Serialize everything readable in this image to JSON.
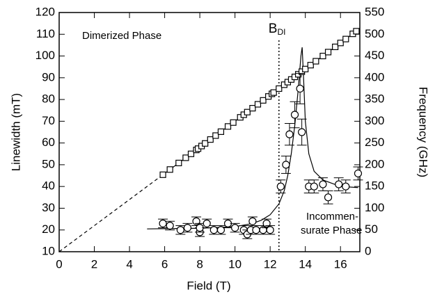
{
  "chart_data": {
    "type": "scatter",
    "x_label": "Field (T)",
    "y_label": "Linewidth (mT)",
    "y2_label": "Frequency (GHz)",
    "xlim": [
      0,
      17.1
    ],
    "ylim": [
      10,
      120
    ],
    "y2lim": [
      0,
      550
    ],
    "xticks": [
      0,
      2,
      4,
      6,
      8,
      10,
      12,
      14,
      16
    ],
    "yticks": [
      10,
      20,
      30,
      40,
      50,
      60,
      70,
      80,
      90,
      100,
      110,
      120
    ],
    "y2ticks": [
      0,
      50,
      100,
      150,
      200,
      250,
      300,
      350,
      400,
      450,
      500,
      550
    ],
    "color": "#000000",
    "frequency": {
      "axis": "y2",
      "marker": "square",
      "x": [
        5.9,
        6.3,
        6.8,
        7.2,
        7.5,
        7.8,
        7.9,
        8.1,
        8.3,
        8.6,
        8.9,
        9.2,
        9.6,
        9.9,
        10.3,
        10.5,
        10.7,
        11.0,
        11.3,
        11.6,
        11.9,
        12.1,
        12.2,
        12.5,
        12.8,
        13.0,
        13.2,
        13.4,
        13.6,
        13.8,
        14.0,
        14.3,
        14.6,
        15.0,
        15.3,
        15.7,
        16.0,
        16.3,
        16.7,
        16.9
      ],
      "values": [
        177,
        189,
        204,
        216,
        225,
        234,
        237,
        243,
        249,
        258,
        267,
        276,
        288,
        297,
        309,
        315,
        321,
        330,
        339,
        348,
        357,
        363,
        366,
        375,
        384,
        390,
        396,
        402,
        408,
        414,
        420,
        429,
        438,
        450,
        459,
        471,
        480,
        489,
        501,
        507
      ]
    },
    "frequency_fit_extrapolated": {
      "axis": "y2",
      "style": "dashed",
      "x": [
        0,
        5.9
      ],
      "values": [
        0,
        177
      ]
    },
    "frequency_fit": {
      "axis": "y2",
      "style": "solid",
      "x": [
        5.9,
        17.1
      ],
      "values": [
        177,
        513
      ]
    },
    "linewidth": {
      "axis": "y",
      "marker": "circle",
      "x": [
        5.9,
        6.3,
        6.9,
        7.3,
        7.8,
        8.0,
        8.0,
        8.4,
        8.8,
        9.2,
        9.6,
        10.0,
        10.5,
        10.7,
        10.9,
        11.0,
        11.2,
        11.6,
        11.8,
        12.0,
        12.6,
        12.9,
        13.1,
        13.4,
        13.7,
        13.8,
        14.2,
        14.5,
        15.0,
        15.3,
        15.9,
        16.3,
        17.0
      ],
      "values": [
        23,
        22,
        20,
        21,
        24,
        19,
        21,
        23,
        20,
        20,
        23,
        21,
        20,
        18,
        20,
        24,
        20,
        20,
        23,
        20,
        40,
        50,
        64,
        73,
        85,
        65,
        40,
        40,
        41,
        35,
        41,
        40,
        46
      ],
      "errors": [
        2,
        2,
        2,
        2,
        2,
        2,
        2,
        2,
        2,
        2,
        2,
        2,
        2,
        2,
        2,
        2,
        2,
        2,
        2,
        2,
        3,
        4,
        5,
        6,
        7,
        6,
        3,
        3,
        3,
        3,
        3,
        3,
        3
      ]
    },
    "linewidth_fit": {
      "axis": "y",
      "x": [
        5.0,
        8.0,
        10.0,
        11.0,
        11.5,
        12.0,
        12.5,
        12.8,
        13.0,
        13.2,
        13.4,
        13.6,
        13.75,
        13.82,
        13.9,
        14.0,
        14.2,
        14.5,
        15.0,
        16.0,
        17.0
      ],
      "values": [
        20.5,
        20.8,
        21.5,
        23,
        24.5,
        27,
        32,
        38,
        45,
        55,
        68,
        85,
        100,
        104,
        90,
        70,
        55,
        47,
        43,
        40,
        39.5
      ]
    },
    "transition": {
      "label": "B",
      "subscript": "DI",
      "value": 12.5
    },
    "annotations": [
      "Dimerized Phase",
      "Incommen-",
      "surate Phase"
    ]
  }
}
